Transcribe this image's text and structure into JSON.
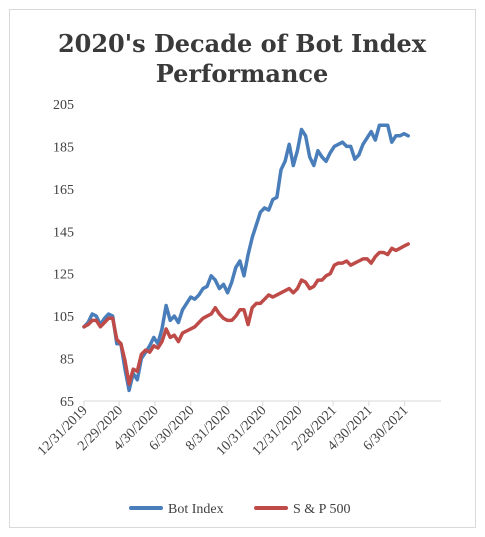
{
  "chart_data": {
    "type": "line",
    "title_lines": [
      "2020's Decade of Bot Index",
      "Performance"
    ],
    "xlabel": "",
    "ylabel": "",
    "ylim": [
      65,
      205
    ],
    "y_ticks": [
      65,
      85,
      105,
      125,
      145,
      165,
      185,
      205
    ],
    "x_range": [
      "2019-12-31",
      "2021-08-31"
    ],
    "x_ticks": [
      "12/31/2019",
      "2/29/2020",
      "4/30/2020",
      "6/30/2020",
      "8/31/2020",
      "10/31/2020",
      "12/31/2020",
      "2/28/2021",
      "4/30/2021",
      "6/30/2021"
    ],
    "grid": false,
    "legend_position": "bottom",
    "series": [
      {
        "name": "Bot Index",
        "color": "#4a7ebb",
        "points": [
          [
            "2019-12-31",
            100
          ],
          [
            "2020-01-07",
            102
          ],
          [
            "2020-01-14",
            106
          ],
          [
            "2020-01-21",
            105
          ],
          [
            "2020-01-28",
            101
          ],
          [
            "2020-02-04",
            104
          ],
          [
            "2020-02-11",
            106
          ],
          [
            "2020-02-18",
            105
          ],
          [
            "2020-02-25",
            92
          ],
          [
            "2020-03-03",
            92
          ],
          [
            "2020-03-10",
            80
          ],
          [
            "2020-03-17",
            70
          ],
          [
            "2020-03-24",
            78
          ],
          [
            "2020-03-31",
            75
          ],
          [
            "2020-04-07",
            85
          ],
          [
            "2020-04-14",
            88
          ],
          [
            "2020-04-21",
            91
          ],
          [
            "2020-04-28",
            95
          ],
          [
            "2020-05-05",
            92
          ],
          [
            "2020-05-12",
            99
          ],
          [
            "2020-05-19",
            110
          ],
          [
            "2020-05-26",
            103
          ],
          [
            "2020-06-02",
            105
          ],
          [
            "2020-06-09",
            102
          ],
          [
            "2020-06-16",
            108
          ],
          [
            "2020-06-23",
            111
          ],
          [
            "2020-06-30",
            114
          ],
          [
            "2020-07-07",
            113
          ],
          [
            "2020-07-14",
            115
          ],
          [
            "2020-07-21",
            118
          ],
          [
            "2020-07-28",
            119
          ],
          [
            "2020-08-04",
            124
          ],
          [
            "2020-08-11",
            122
          ],
          [
            "2020-08-18",
            118
          ],
          [
            "2020-08-25",
            120
          ],
          [
            "2020-09-01",
            116
          ],
          [
            "2020-09-08",
            121
          ],
          [
            "2020-09-15",
            128
          ],
          [
            "2020-09-22",
            131
          ],
          [
            "2020-09-29",
            124
          ],
          [
            "2020-10-06",
            134
          ],
          [
            "2020-10-13",
            142
          ],
          [
            "2020-10-20",
            148
          ],
          [
            "2020-10-27",
            154
          ],
          [
            "2020-11-03",
            156
          ],
          [
            "2020-11-10",
            155
          ],
          [
            "2020-11-17",
            160
          ],
          [
            "2020-11-24",
            161
          ],
          [
            "2020-12-01",
            174
          ],
          [
            "2020-12-08",
            178
          ],
          [
            "2020-12-15",
            186
          ],
          [
            "2020-12-22",
            176
          ],
          [
            "2020-12-29",
            183
          ],
          [
            "2021-01-05",
            193
          ],
          [
            "2021-01-12",
            190
          ],
          [
            "2021-01-19",
            180
          ],
          [
            "2021-01-26",
            176
          ],
          [
            "2021-02-02",
            183
          ],
          [
            "2021-02-09",
            180
          ],
          [
            "2021-02-16",
            178
          ],
          [
            "2021-02-23",
            182
          ],
          [
            "2021-03-02",
            185
          ],
          [
            "2021-03-09",
            186
          ],
          [
            "2021-03-16",
            187
          ],
          [
            "2021-03-23",
            185
          ],
          [
            "2021-03-30",
            185
          ],
          [
            "2021-04-06",
            179
          ],
          [
            "2021-04-13",
            181
          ],
          [
            "2021-04-20",
            186
          ],
          [
            "2021-04-27",
            189
          ],
          [
            "2021-05-04",
            192
          ],
          [
            "2021-05-11",
            188
          ],
          [
            "2021-05-18",
            195
          ],
          [
            "2021-05-25",
            195
          ],
          [
            "2021-06-01",
            195
          ],
          [
            "2021-06-08",
            187
          ],
          [
            "2021-06-15",
            190
          ],
          [
            "2021-06-22",
            190
          ],
          [
            "2021-06-29",
            191
          ],
          [
            "2021-07-06",
            190
          ]
        ]
      },
      {
        "name": "S & P 500",
        "color": "#be4b48",
        "points": [
          [
            "2019-12-31",
            100
          ],
          [
            "2020-01-07",
            101
          ],
          [
            "2020-01-14",
            103
          ],
          [
            "2020-01-21",
            103
          ],
          [
            "2020-01-28",
            100
          ],
          [
            "2020-02-04",
            102
          ],
          [
            "2020-02-11",
            104
          ],
          [
            "2020-02-18",
            104
          ],
          [
            "2020-02-25",
            94
          ],
          [
            "2020-03-03",
            92
          ],
          [
            "2020-03-10",
            84
          ],
          [
            "2020-03-17",
            73
          ],
          [
            "2020-03-24",
            80
          ],
          [
            "2020-03-31",
            79
          ],
          [
            "2020-04-07",
            87
          ],
          [
            "2020-04-14",
            89
          ],
          [
            "2020-04-21",
            88
          ],
          [
            "2020-04-28",
            91
          ],
          [
            "2020-05-05",
            90
          ],
          [
            "2020-05-12",
            93
          ],
          [
            "2020-05-19",
            99
          ],
          [
            "2020-05-26",
            95
          ],
          [
            "2020-06-02",
            96
          ],
          [
            "2020-06-09",
            93
          ],
          [
            "2020-06-16",
            97
          ],
          [
            "2020-06-23",
            98
          ],
          [
            "2020-06-30",
            99
          ],
          [
            "2020-07-07",
            100
          ],
          [
            "2020-07-14",
            102
          ],
          [
            "2020-07-21",
            104
          ],
          [
            "2020-07-28",
            105
          ],
          [
            "2020-08-04",
            106
          ],
          [
            "2020-08-11",
            109
          ],
          [
            "2020-08-18",
            106
          ],
          [
            "2020-08-25",
            104
          ],
          [
            "2020-09-01",
            103
          ],
          [
            "2020-09-08",
            103
          ],
          [
            "2020-09-15",
            105
          ],
          [
            "2020-09-22",
            108
          ],
          [
            "2020-09-29",
            108
          ],
          [
            "2020-10-06",
            101
          ],
          [
            "2020-10-13",
            109
          ],
          [
            "2020-10-20",
            111
          ],
          [
            "2020-10-27",
            111
          ],
          [
            "2020-11-03",
            113
          ],
          [
            "2020-11-10",
            115
          ],
          [
            "2020-11-17",
            114
          ],
          [
            "2020-11-24",
            115
          ],
          [
            "2020-12-01",
            116
          ],
          [
            "2020-12-08",
            117
          ],
          [
            "2020-12-15",
            118
          ],
          [
            "2020-12-22",
            116
          ],
          [
            "2020-12-29",
            118
          ],
          [
            "2021-01-05",
            122
          ],
          [
            "2021-01-12",
            121
          ],
          [
            "2021-01-19",
            118
          ],
          [
            "2021-01-26",
            119
          ],
          [
            "2021-02-02",
            122
          ],
          [
            "2021-02-09",
            122
          ],
          [
            "2021-02-16",
            124
          ],
          [
            "2021-02-23",
            125
          ],
          [
            "2021-03-02",
            129
          ],
          [
            "2021-03-09",
            130
          ],
          [
            "2021-03-16",
            130
          ],
          [
            "2021-03-23",
            131
          ],
          [
            "2021-03-30",
            129
          ],
          [
            "2021-04-06",
            130
          ],
          [
            "2021-04-13",
            131
          ],
          [
            "2021-04-20",
            132
          ],
          [
            "2021-04-27",
            132
          ],
          [
            "2021-05-04",
            130
          ],
          [
            "2021-05-11",
            133
          ],
          [
            "2021-05-18",
            135
          ],
          [
            "2021-05-25",
            135
          ],
          [
            "2021-06-01",
            134
          ],
          [
            "2021-06-08",
            137
          ],
          [
            "2021-06-15",
            136
          ],
          [
            "2021-06-22",
            137
          ],
          [
            "2021-06-29",
            138
          ],
          [
            "2021-07-06",
            139
          ]
        ]
      }
    ]
  }
}
